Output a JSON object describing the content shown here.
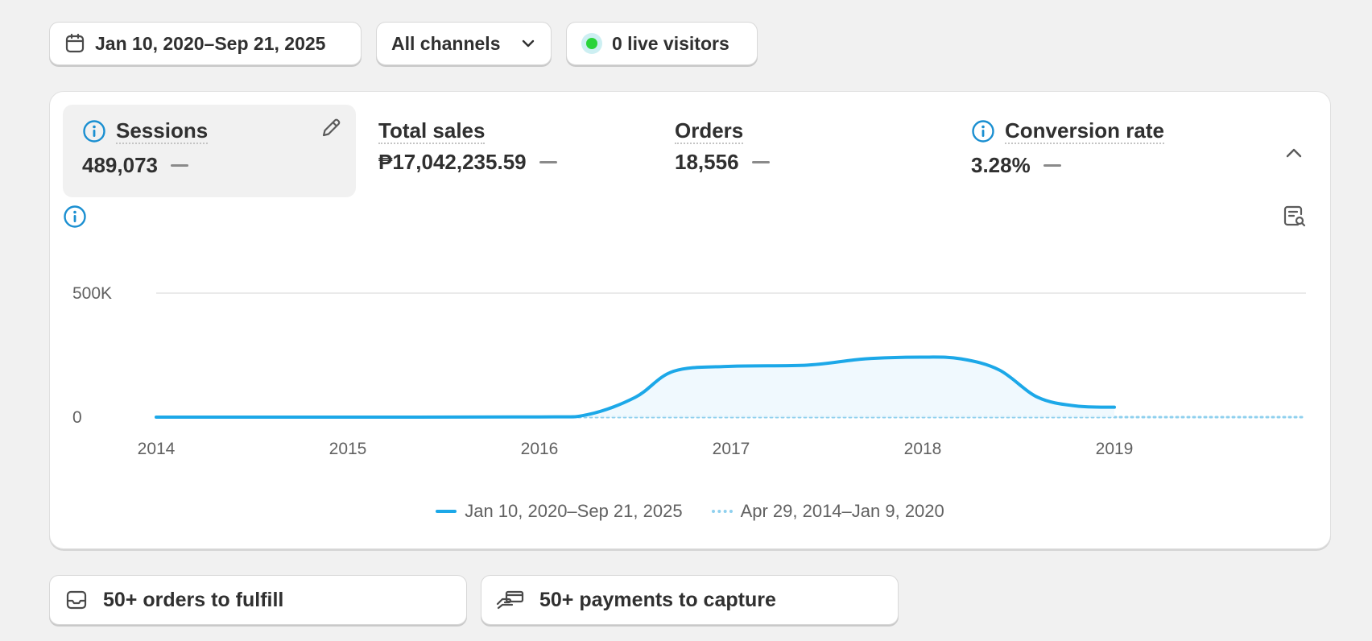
{
  "filters": {
    "date_range": "Jan 10, 2020–Sep 21, 2025",
    "channels": "All channels",
    "live_visitors": "0 live visitors"
  },
  "metrics": [
    {
      "label": "Sessions",
      "value": "489,073"
    },
    {
      "label": "Total sales",
      "value": "₱17,042,235.59"
    },
    {
      "label": "Orders",
      "value": "18,556"
    },
    {
      "label": "Conversion rate",
      "value": "3.28%"
    }
  ],
  "colors": {
    "accent": "#1ca8e8",
    "comparison": "#8fd0ee",
    "info": "#1a8fd1",
    "live": "#2ad43a"
  },
  "chart_data": {
    "type": "line",
    "x_ticks": [
      "2014",
      "2015",
      "2016",
      "2017",
      "2018",
      "2019"
    ],
    "y_ticks": [
      "0",
      "500K"
    ],
    "ylim": [
      0,
      500000
    ],
    "xlim": [
      2014,
      2020
    ],
    "series": [
      {
        "name": "Jan 10, 2020–Sep 21, 2025",
        "style": "solid-area",
        "points": [
          [
            2014,
            0
          ],
          [
            2015,
            0
          ],
          [
            2016,
            1000
          ],
          [
            2016.25,
            10000
          ],
          [
            2016.5,
            80000
          ],
          [
            2016.7,
            185000
          ],
          [
            2017,
            205000
          ],
          [
            2017.4,
            210000
          ],
          [
            2017.7,
            235000
          ],
          [
            2018,
            242000
          ],
          [
            2018.2,
            235000
          ],
          [
            2018.4,
            190000
          ],
          [
            2018.6,
            80000
          ],
          [
            2018.8,
            45000
          ],
          [
            2019,
            40000
          ]
        ]
      },
      {
        "name": "Apr 29, 2014–Jan 9, 2020",
        "style": "dotted",
        "points": [
          [
            2014,
            0
          ],
          [
            2020,
            0
          ]
        ]
      }
    ],
    "legend": [
      "Jan 10, 2020–Sep 21, 2025",
      "Apr 29, 2014–Jan 9, 2020"
    ],
    "grid": true,
    "legend_position": "bottom-center"
  },
  "tasks": [
    {
      "label": "50+ orders to fulfill"
    },
    {
      "label": "50+ payments to capture"
    }
  ]
}
